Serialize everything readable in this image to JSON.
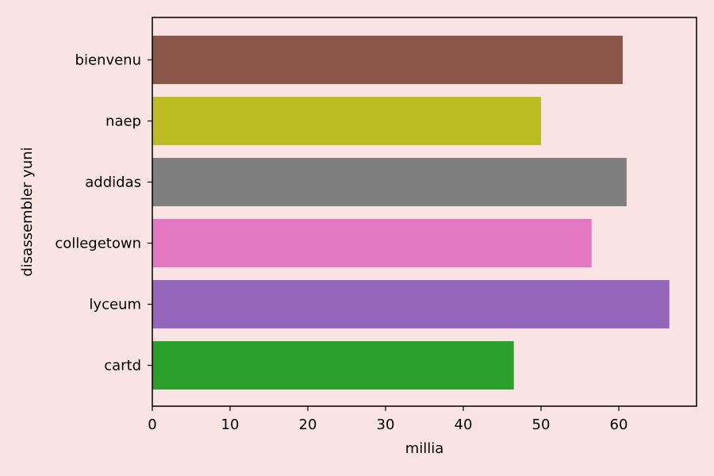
{
  "chart_data": {
    "type": "bar",
    "orientation": "horizontal",
    "title": "",
    "xlabel": "millia",
    "ylabel": "disassembler yuni",
    "categories": [
      "bienvenu",
      "naep",
      "addidas",
      "collegetown",
      "lyceum",
      "cartd"
    ],
    "values": [
      60.5,
      50.0,
      61.0,
      56.5,
      66.5,
      46.5
    ],
    "colors": [
      "#8c564b",
      "#bcbd22",
      "#7f7f7f",
      "#e377c2",
      "#9467bd",
      "#2ca02c"
    ],
    "xlim": [
      0,
      70
    ],
    "xticks": [
      0,
      10,
      20,
      30,
      40,
      50,
      60
    ],
    "grid": false,
    "legend": "none",
    "background": "#f9e3e3"
  }
}
